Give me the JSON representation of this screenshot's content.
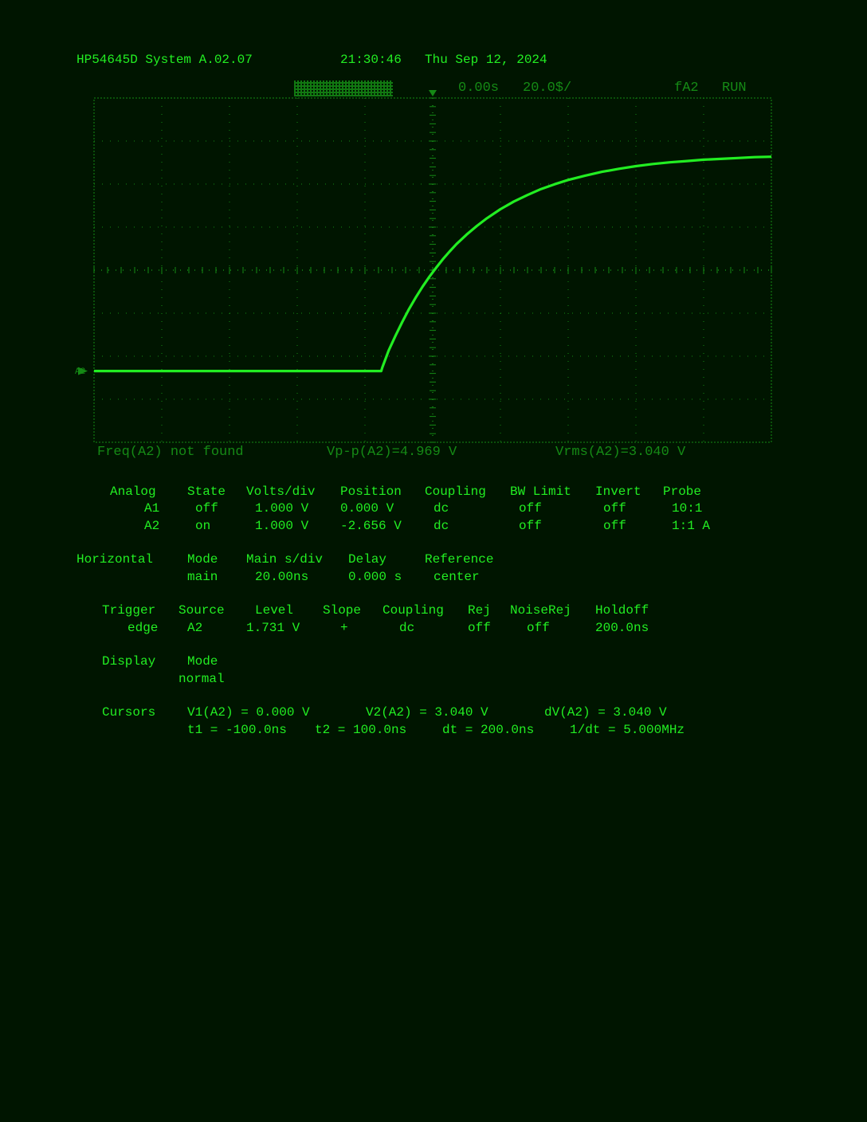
{
  "header": {
    "model": "HP54645D System A.02.07",
    "time": "21:30:46",
    "date": "Thu Sep 12, 2024"
  },
  "screen_status": {
    "delay": "0.00s",
    "timebase": "20.0$/",
    "trigger": "fA2",
    "run_state": "RUN"
  },
  "channel_marker": "A2",
  "measurements": {
    "freq": "Freq(A2) not found",
    "vpp": "Vp-p(A2)=4.969 V",
    "vrms": "Vrms(A2)=3.040 V"
  },
  "analog": {
    "headers": [
      "Analog",
      "State",
      "Volts/div",
      "Position",
      "Coupling",
      "BW Limit",
      "Invert",
      "Probe"
    ],
    "rows": [
      [
        "A1",
        "off",
        "1.000 V",
        "0.000 V",
        "dc",
        "off",
        "off",
        "10:1"
      ],
      [
        "A2",
        "on",
        "1.000 V",
        "-2.656 V",
        "dc",
        "off",
        "off",
        "1:1 A"
      ]
    ]
  },
  "horizontal": {
    "headers": [
      "Horizontal",
      "Mode",
      "Main s/div",
      "Delay",
      "Reference"
    ],
    "values": [
      "main",
      "20.00ns",
      "0.000 s",
      "center"
    ]
  },
  "trigger": {
    "headers": [
      "Trigger",
      "Source",
      "Level",
      "Slope",
      "Coupling",
      "Rej",
      "NoiseRej",
      "Holdoff"
    ],
    "values": [
      "edge",
      "A2",
      "1.731 V",
      "+",
      "dc",
      "off",
      "off",
      "200.0ns"
    ]
  },
  "display": {
    "headers": [
      "Display",
      "Mode"
    ],
    "values": [
      "normal"
    ]
  },
  "cursors": {
    "label": "Cursors",
    "line1": [
      "V1(A2) = 0.000 V",
      "V2(A2) = 3.040 V",
      "dV(A2) = 3.040 V"
    ],
    "line2": [
      "t1 = -100.0ns",
      "t2 = 100.0ns",
      "dt = 200.0ns",
      "1/dt = 5.000MHz"
    ]
  },
  "chart_data": {
    "type": "line",
    "xlabel": "",
    "ylabel": "",
    "xlim": [
      -100,
      100
    ],
    "ylim": [
      -1.656,
      6.344
    ],
    "series": [
      {
        "color": "#22ee22",
        "x": [
          -100,
          -80,
          -60,
          -40,
          -20,
          -15.2,
          -14.9,
          -13,
          -11,
          -9,
          -7,
          -5,
          -3,
          -1,
          1,
          3,
          5,
          7,
          10,
          13,
          16,
          20,
          24,
          28,
          32,
          36,
          40,
          45,
          50,
          55,
          60,
          65,
          70,
          75,
          80,
          85,
          90,
          95,
          100
        ],
        "y": [
          0,
          0,
          0,
          0,
          0,
          0,
          0.08,
          0.48,
          0.82,
          1.14,
          1.44,
          1.71,
          1.96,
          2.19,
          2.4,
          2.6,
          2.78,
          2.95,
          3.17,
          3.37,
          3.55,
          3.76,
          3.94,
          4.09,
          4.23,
          4.34,
          4.44,
          4.54,
          4.63,
          4.7,
          4.76,
          4.81,
          4.85,
          4.88,
          4.91,
          4.93,
          4.95,
          4.97,
          4.98
        ]
      }
    ],
    "grid": true
  }
}
